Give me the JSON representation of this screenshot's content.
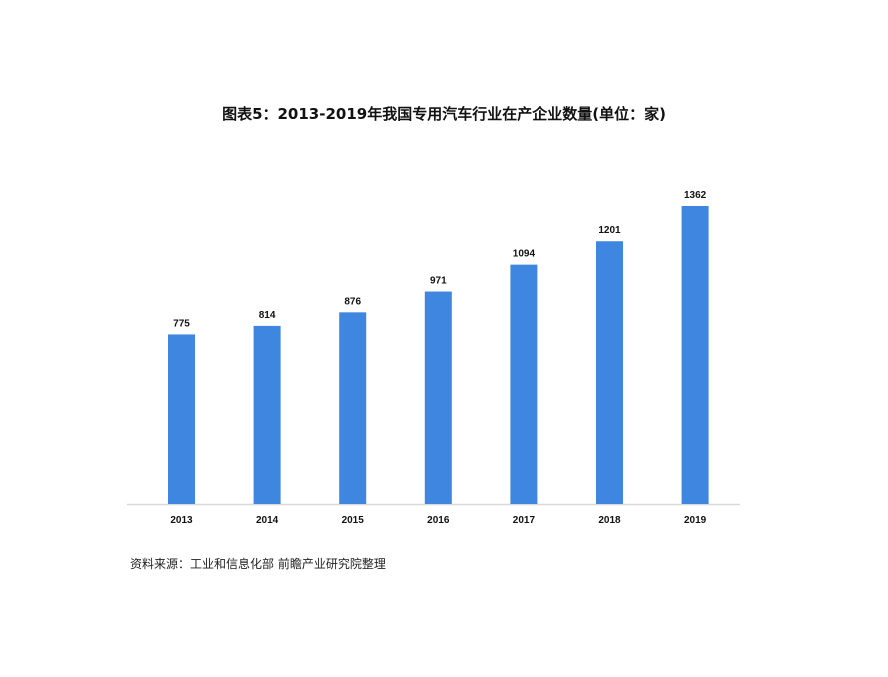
{
  "chart_data": {
    "type": "bar",
    "title": "图表5：2013-2019年我国专用汽车行业在产企业数量(单位：家)",
    "categories": [
      "2013",
      "2014",
      "2015",
      "2016",
      "2017",
      "2018",
      "2019"
    ],
    "values": [
      775,
      814,
      876,
      971,
      1094,
      1201,
      1362
    ],
    "ylim": [
      0,
      1362
    ],
    "grid": false,
    "bar_color": "#3f86e0",
    "xlabel": "",
    "ylabel": ""
  },
  "source": "资料来源：工业和信息化部 前瞻产业研究院整理"
}
